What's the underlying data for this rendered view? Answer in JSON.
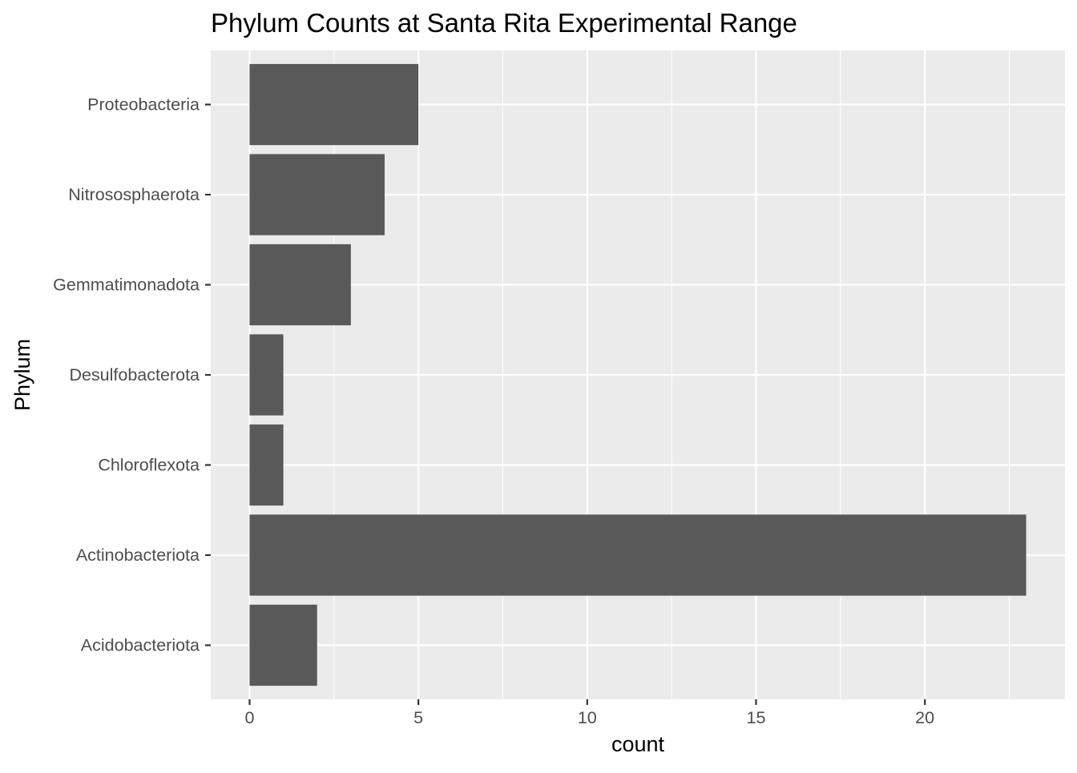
{
  "chart_data": {
    "type": "bar",
    "orientation": "horizontal",
    "title": "Phylum Counts at Santa Rita Experimental Range",
    "xlabel": "count",
    "ylabel": "Phylum",
    "categories": [
      "Acidobacteriota",
      "Actinobacteriota",
      "Chloroflexota",
      "Desulfobacterota",
      "Gemmatimonadota",
      "Nitrososphaerota",
      "Proteobacteria"
    ],
    "values": [
      2,
      23,
      1,
      1,
      3,
      4,
      5
    ],
    "xlim": [
      -1.15,
      24.15
    ],
    "xticks": [
      0,
      5,
      10,
      15,
      20
    ],
    "grid": true,
    "legend": "none",
    "colors": {
      "bar": "#595959",
      "panel": "#ebebeb",
      "grid": "#ffffff",
      "text": "#000000",
      "tick_text": "#4d4d4d"
    }
  }
}
